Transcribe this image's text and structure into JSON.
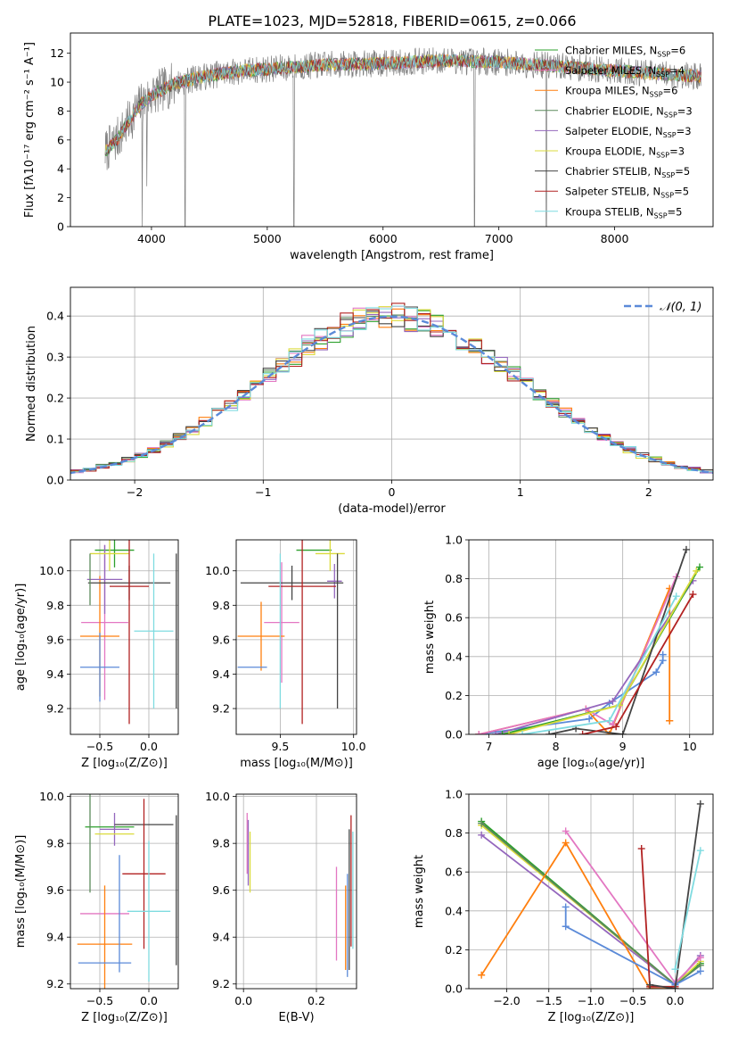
{
  "figure": {
    "title": "PLATE=1023, MJD=52818, FIBERID=0615, z=0.066"
  },
  "colors": {
    "grid": "#b0b0b0",
    "observed": "#7f7f7f",
    "normal_curve": "#5b8ad8"
  },
  "chart_data": [
    {
      "id": "spectrum",
      "type": "line",
      "xlabel": "wavelength [Angstrom, rest frame]",
      "ylabel": "Flux [fλ10⁻¹⁷ erg cm⁻² s⁻¹ A⁻¹]",
      "xlim": [
        3300,
        8850
      ],
      "ylim": [
        0,
        13.4
      ],
      "xticks": [
        4000,
        5000,
        6000,
        7000,
        8000
      ],
      "yticks": [
        0,
        2,
        4,
        6,
        8,
        10,
        12
      ],
      "grid": false,
      "legend_position": "right",
      "observed_range": [
        3600,
        8750
      ],
      "continuum": [
        [
          3600,
          5.2
        ],
        [
          3700,
          6.0
        ],
        [
          3800,
          7.2
        ],
        [
          3900,
          8.4
        ],
        [
          4000,
          9.1
        ],
        [
          4200,
          9.9
        ],
        [
          4400,
          10.3
        ],
        [
          4600,
          10.6
        ],
        [
          4800,
          10.8
        ],
        [
          5000,
          10.9
        ],
        [
          5500,
          11.2
        ],
        [
          6000,
          11.3
        ],
        [
          6500,
          11.5
        ],
        [
          7000,
          11.4
        ],
        [
          7500,
          11.1
        ],
        [
          8000,
          10.8
        ],
        [
          8500,
          10.5
        ],
        [
          8750,
          10.4
        ]
      ],
      "spikes": [
        [
          3920,
          0.0
        ],
        [
          3960,
          2.8
        ],
        [
          4290,
          0.0
        ],
        [
          5230,
          0.0
        ],
        [
          6790,
          0.0
        ],
        [
          7410,
          0.0
        ]
      ],
      "series": [
        {
          "name": "Chabrier MILES, N_SSP=6",
          "label_main": "Chabrier MILES, N",
          "label_sub": "SSP",
          "label_tail": "=6",
          "color": "#2ca02c"
        },
        {
          "name": "Salpeter MILES, N_SSP=4",
          "label_main": "Salpeter MILES, N",
          "label_sub": "SSP",
          "label_tail": "=4",
          "color": "#e377c2"
        },
        {
          "name": "Kroupa MILES, N_SSP=6",
          "label_main": "Kroupa MILES, N",
          "label_sub": "SSP",
          "label_tail": "=6",
          "color": "#ff7f0e"
        },
        {
          "name": "Chabrier ELODIE, N_SSP=3",
          "label_main": "Chabrier ELODIE, N",
          "label_sub": "SSP",
          "label_tail": "=3",
          "color": "#5c8a5c"
        },
        {
          "name": "Salpeter ELODIE, N_SSP=3",
          "label_main": "Salpeter ELODIE, N",
          "label_sub": "SSP",
          "label_tail": "=3",
          "color": "#9467bd"
        },
        {
          "name": "Kroupa ELODIE, N_SSP=3",
          "label_main": "Kroupa ELODIE, N",
          "label_sub": "SSP",
          "label_tail": "=3",
          "color": "#dbdb3d"
        },
        {
          "name": "Chabrier STELIB, N_SSP=5",
          "label_main": "Chabrier STELIB, N",
          "label_sub": "SSP",
          "label_tail": "=5",
          "color": "#444444"
        },
        {
          "name": "Salpeter STELIB, N_SSP=5",
          "label_main": "Salpeter STELIB, N",
          "label_sub": "SSP",
          "label_tail": "=5",
          "color": "#b22222"
        },
        {
          "name": "Kroupa STELIB, N_SSP=5",
          "label_main": "Kroupa STELIB, N",
          "label_sub": "SSP",
          "label_tail": "=5",
          "color": "#7fdbe0"
        }
      ]
    },
    {
      "id": "residuals",
      "type": "histogram",
      "xlabel": "(data-model)/error",
      "ylabel": "Normed distribution",
      "xlim": [
        -2.5,
        2.5
      ],
      "ylim": [
        0,
        0.47
      ],
      "xticks": [
        -2,
        -1,
        0,
        1,
        2
      ],
      "yticks": [
        0.0,
        0.1,
        0.2,
        0.3,
        0.4
      ],
      "grid": true,
      "legend_position": "top-right",
      "legend_label": "𝒩(0, 1)",
      "bin_width": 0.1,
      "normal": {
        "mean": 0,
        "sigma": 1
      }
    },
    {
      "id": "z_age",
      "type": "errorbar",
      "xlabel": "Z [log₁₀(Z/Z⊙)]",
      "ylabel": "age  [log₁₀(age/yr)]",
      "xlim": [
        -0.8,
        0.3
      ],
      "ylim": [
        9.05,
        10.18
      ],
      "xticks": [
        -0.5,
        0.0
      ],
      "yticks": [
        9.2,
        9.4,
        9.6,
        9.8,
        10.0
      ],
      "grid": true,
      "points": [
        {
          "x": -0.35,
          "xerr": 0.2,
          "y": 10.12,
          "yerr": 0.1,
          "color": "#2ca02c"
        },
        {
          "x": -0.45,
          "xerr": 0.24,
          "y": 9.7,
          "yerr": 0.45,
          "color": "#e377c2"
        },
        {
          "x": -0.5,
          "xerr": 0.2,
          "y": 9.62,
          "yerr": 0.35,
          "color": "#ff7f0e"
        },
        {
          "x": -0.45,
          "xerr": 0.18,
          "y": 9.95,
          "yerr": 0.2,
          "color": "#9467bd"
        },
        {
          "x": -0.4,
          "xerr": 0.2,
          "y": 10.1,
          "yerr": 0.1,
          "color": "#dbdb3d"
        },
        {
          "x": -0.2,
          "xerr": 0.42,
          "y": 9.93,
          "yerr": 0.1,
          "color": "#444444"
        },
        {
          "x": -0.2,
          "xerr": 0.2,
          "y": 9.91,
          "yerr": 0.8,
          "color": "#b22222"
        },
        {
          "x": 0.05,
          "xerr": 0.2,
          "y": 9.65,
          "yerr": 0.45,
          "color": "#7fdbe0"
        },
        {
          "x": -0.5,
          "xerr": 0.2,
          "y": 9.44,
          "yerr": 0.2,
          "color": "#5b8ad8"
        },
        {
          "x": -0.6,
          "xerr": 0.0,
          "y": 9.95,
          "yerr": 0.15,
          "color": "#5c8a5c"
        },
        {
          "x": 0.28,
          "xerr": 0.0,
          "y": 9.65,
          "yerr": 0.45,
          "color": "#444444"
        }
      ]
    },
    {
      "id": "mass_age",
      "type": "errorbar",
      "xlabel": "mass [log₁₀(M/M⊙)]",
      "ylabel": "",
      "xlim": [
        9.2,
        10.02
      ],
      "ylim": [
        9.05,
        10.18
      ],
      "xticks": [
        9.5,
        10.0
      ],
      "yticks": [
        9.2,
        9.4,
        9.6,
        9.8,
        10.0
      ],
      "grid": true,
      "points": [
        {
          "x": 9.73,
          "xerr": 0.12,
          "y": 10.12,
          "yerr": 0.0,
          "color": "#2ca02c"
        },
        {
          "x": 9.51,
          "xerr": 0.12,
          "y": 9.7,
          "yerr": 0.35,
          "color": "#e377c2"
        },
        {
          "x": 9.37,
          "xerr": 0.16,
          "y": 9.62,
          "yerr": 0.2,
          "color": "#ff7f0e"
        },
        {
          "x": 9.87,
          "xerr": 0.05,
          "y": 9.94,
          "yerr": 0.1,
          "color": "#9467bd"
        },
        {
          "x": 9.84,
          "xerr": 0.1,
          "y": 10.1,
          "yerr": 0.1,
          "color": "#dbdb3d"
        },
        {
          "x": 9.58,
          "xerr": 0.35,
          "y": 9.93,
          "yerr": 0.1,
          "color": "#444444"
        },
        {
          "x": 9.65,
          "xerr": 0.23,
          "y": 9.91,
          "yerr": 0.8,
          "color": "#b22222"
        },
        {
          "x": 9.5,
          "xerr": 0.0,
          "y": 9.65,
          "yerr": 0.45,
          "color": "#7fdbe0"
        },
        {
          "x": 9.31,
          "xerr": 0.1,
          "y": 9.44,
          "yerr": 0.0,
          "color": "#5b8ad8"
        },
        {
          "x": 9.89,
          "xerr": 0.0,
          "y": 9.65,
          "yerr": 0.45,
          "color": "#444444"
        }
      ]
    },
    {
      "id": "age_weight",
      "type": "line",
      "xlabel": "age  [log₁₀(age/yr)]",
      "ylabel": "mass weight",
      "xlim": [
        6.7,
        10.35
      ],
      "ylim": [
        0,
        1.0
      ],
      "xticks": [
        7,
        8,
        9,
        10
      ],
      "yticks": [
        0.0,
        0.2,
        0.4,
        0.6,
        0.8,
        1.0
      ],
      "grid": true,
      "series": [
        {
          "color": "#5b8ad8",
          "x": [
            6.85,
            8.5,
            8.8,
            9.5,
            9.6,
            9.6
          ],
          "y": [
            0.0,
            0.08,
            0.16,
            0.32,
            0.38,
            0.41
          ]
        },
        {
          "color": "#ff7f0e",
          "x": [
            6.85,
            8.45,
            8.8,
            9.7,
            9.7,
            9.7
          ],
          "y": [
            0.0,
            0.13,
            0.0,
            0.75,
            0.07,
            0.07
          ]
        },
        {
          "color": "#e377c2",
          "x": [
            6.85,
            8.45,
            8.85,
            9.8
          ],
          "y": [
            0.0,
            0.13,
            0.05,
            0.81
          ]
        },
        {
          "color": "#9467bd",
          "x": [
            7.1,
            8.85,
            10.05
          ],
          "y": [
            0.0,
            0.17,
            0.79
          ]
        },
        {
          "color": "#2ca02c",
          "x": [
            7.2,
            8.95,
            10.15
          ],
          "y": [
            0.0,
            0.15,
            0.86
          ]
        },
        {
          "color": "#dbdb3d",
          "x": [
            7.3,
            8.95,
            10.1
          ],
          "y": [
            0.0,
            0.15,
            0.84
          ]
        },
        {
          "color": "#444444",
          "x": [
            7.9,
            8.3,
            9.0,
            9.95
          ],
          "y": [
            0.0,
            0.03,
            0.0,
            0.95
          ]
        },
        {
          "color": "#b22222",
          "x": [
            8.4,
            8.9,
            10.05
          ],
          "y": [
            0.0,
            0.04,
            0.72
          ]
        },
        {
          "color": "#7fdbe0",
          "x": [
            7.5,
            8.8,
            9.8
          ],
          "y": [
            0.0,
            0.07,
            0.71
          ]
        }
      ]
    },
    {
      "id": "z_mass",
      "type": "errorbar",
      "xlabel": "Z [log₁₀(Z/Z⊙)]",
      "ylabel": "mass [log₁₀(M/M⊙)]",
      "xlim": [
        -0.8,
        0.3
      ],
      "ylim": [
        9.18,
        10.01
      ],
      "xticks": [
        -0.5,
        0.0
      ],
      "yticks": [
        9.2,
        9.4,
        9.6,
        9.8,
        10.0
      ],
      "grid": true,
      "points": [
        {
          "x": -0.4,
          "xerr": 0.25,
          "y": 9.87,
          "yerr": 0.0,
          "color": "#2ca02c"
        },
        {
          "x": -0.45,
          "xerr": 0.25,
          "y": 9.5,
          "yerr": 0.0,
          "color": "#e377c2"
        },
        {
          "x": -0.45,
          "xerr": 0.28,
          "y": 9.37,
          "yerr": 0.25,
          "color": "#ff7f0e"
        },
        {
          "x": -0.35,
          "xerr": 0.15,
          "y": 9.86,
          "yerr": 0.07,
          "color": "#9467bd"
        },
        {
          "x": -0.35,
          "xerr": 0.2,
          "y": 9.84,
          "yerr": 0.0,
          "color": "#dbdb3d"
        },
        {
          "x": -0.05,
          "xerr": 0.3,
          "y": 9.88,
          "yerr": 0.0,
          "color": "#444444"
        },
        {
          "x": -0.05,
          "xerr": 0.22,
          "y": 9.67,
          "yerr": 0.32,
          "color": "#b22222"
        },
        {
          "x": 0.0,
          "xerr": 0.22,
          "y": 9.51,
          "yerr": 0.3,
          "color": "#7fdbe0"
        },
        {
          "x": -0.45,
          "xerr": 0.27,
          "y": 9.29,
          "yerr": 0.0,
          "color": "#5b8ad8"
        },
        {
          "x": -0.6,
          "xerr": 0.0,
          "y": 9.82,
          "yerr": 0.23,
          "color": "#5c8a5c"
        },
        {
          "x": -0.3,
          "xerr": 0.0,
          "y": 9.5,
          "yerr": 0.25,
          "color": "#5b8ad8"
        },
        {
          "x": 0.28,
          "xerr": 0.0,
          "y": 9.6,
          "yerr": 0.32,
          "color": "#444444"
        }
      ]
    },
    {
      "id": "ebv_mass",
      "type": "errorbar",
      "xlabel": "E(B-V)",
      "ylabel": "",
      "xlim": [
        -0.02,
        0.31
      ],
      "ylim": [
        9.18,
        10.01
      ],
      "xticks": [
        0.0,
        0.2
      ],
      "yticks": [
        9.2,
        9.4,
        9.6,
        9.8,
        10.0
      ],
      "grid": true,
      "points": [
        {
          "x": 0.01,
          "xerr": 0.0,
          "y": 9.8,
          "yerr": 0.13,
          "color": "#e377c2"
        },
        {
          "x": 0.013,
          "xerr": 0.0,
          "y": 9.76,
          "yerr": 0.14,
          "color": "#9467bd"
        },
        {
          "x": 0.018,
          "xerr": 0.0,
          "y": 9.72,
          "yerr": 0.13,
          "color": "#dbdb3d"
        },
        {
          "x": 0.255,
          "xerr": 0.0,
          "y": 9.5,
          "yerr": 0.2,
          "color": "#e377c2"
        },
        {
          "x": 0.28,
          "xerr": 0.0,
          "y": 9.44,
          "yerr": 0.18,
          "color": "#ff7f0e"
        },
        {
          "x": 0.285,
          "xerr": 0.0,
          "y": 9.45,
          "yerr": 0.22,
          "color": "#5b8ad8"
        },
        {
          "x": 0.29,
          "xerr": 0.0,
          "y": 9.56,
          "yerr": 0.3,
          "color": "#444444"
        },
        {
          "x": 0.295,
          "xerr": 0.0,
          "y": 9.64,
          "yerr": 0.28,
          "color": "#b22222"
        },
        {
          "x": 0.3,
          "xerr": 0.0,
          "y": 9.6,
          "yerr": 0.25,
          "color": "#7fdbe0"
        }
      ]
    },
    {
      "id": "z_weight",
      "type": "line",
      "xlabel": "Z [log₁₀(Z/Z⊙)]",
      "ylabel": "mass weight",
      "xlim": [
        -2.45,
        0.45
      ],
      "ylim": [
        0,
        1.0
      ],
      "xticks": [
        -2.0,
        -1.5,
        -1.0,
        -0.5,
        0.0
      ],
      "yticks": [
        0.0,
        0.2,
        0.4,
        0.6,
        0.8,
        1.0
      ],
      "grid": true,
      "series": [
        {
          "color": "#2ca02c",
          "x": [
            -2.3,
            0.0,
            0.3
          ],
          "y": [
            0.86,
            0.02,
            0.13
          ]
        },
        {
          "color": "#9467bd",
          "x": [
            -2.3,
            0.0,
            0.3
          ],
          "y": [
            0.79,
            0.02,
            0.17
          ]
        },
        {
          "color": "#dbdb3d",
          "x": [
            -2.3,
            0.0,
            0.3
          ],
          "y": [
            0.84,
            0.02,
            0.14
          ]
        },
        {
          "color": "#5c8a5c",
          "x": [
            -2.3,
            0.0,
            0.3
          ],
          "y": [
            0.85,
            0.02,
            0.12
          ]
        },
        {
          "color": "#ff7f0e",
          "x": [
            -2.3,
            -1.3,
            -0.3,
            0.0
          ],
          "y": [
            0.07,
            0.75,
            0.0,
            0.0
          ]
        },
        {
          "color": "#e377c2",
          "x": [
            -1.3,
            0.0,
            0.3
          ],
          "y": [
            0.81,
            0.03,
            0.16
          ]
        },
        {
          "color": "#5b8ad8",
          "x": [
            -1.3,
            -1.3,
            0.0,
            0.3
          ],
          "y": [
            0.42,
            0.32,
            0.02,
            0.09
          ]
        },
        {
          "color": "#b22222",
          "x": [
            -0.4,
            -0.3,
            0.0
          ],
          "y": [
            0.72,
            0.01,
            0.01
          ]
        },
        {
          "color": "#444444",
          "x": [
            -0.3,
            0.0,
            0.3
          ],
          "y": [
            0.02,
            0.0,
            0.95
          ]
        },
        {
          "color": "#7fdbe0",
          "x": [
            0.0,
            0.3
          ],
          "y": [
            0.1,
            0.71
          ]
        }
      ]
    }
  ]
}
